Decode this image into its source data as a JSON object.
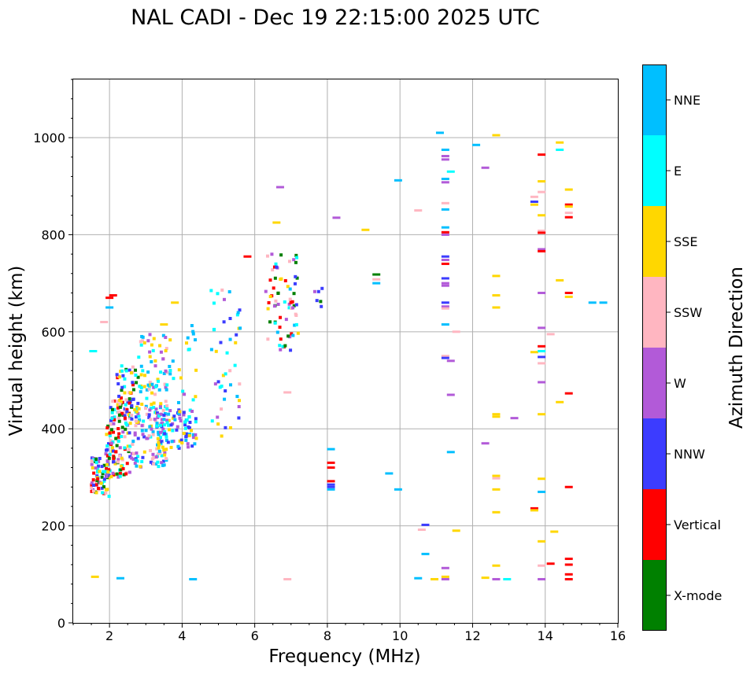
{
  "chart_data": {
    "type": "scatter",
    "title": "NAL CADI - Dec 19 22:15:00 2025 UTC",
    "xlabel": "Frequency (MHz)",
    "ylabel": "Virtual height (km)",
    "xlim": [
      1,
      16
    ],
    "ylim": [
      0,
      1120
    ],
    "xticks": [
      2,
      4,
      6,
      8,
      10,
      12,
      14,
      16
    ],
    "yticks": [
      0,
      200,
      400,
      600,
      800,
      1000
    ],
    "grid": true,
    "colorbar": {
      "title": "Azimuth Direction",
      "categories": [
        {
          "name": "X-mode",
          "color": "#008000"
        },
        {
          "name": "Vertical",
          "color": "#ff0000"
        },
        {
          "name": "NNW",
          "color": "#3c3cff"
        },
        {
          "name": "W",
          "color": "#b25ad8"
        },
        {
          "name": "SSW",
          "color": "#ffb6c1"
        },
        {
          "name": "SSE",
          "color": "#ffd700"
        },
        {
          "name": "E",
          "color": "#00ffff"
        },
        {
          "name": "NNE",
          "color": "#00bfff"
        }
      ]
    },
    "clusters": [
      {
        "f": [
          1.5,
          2.0
        ],
        "h": [
          260,
          340
        ],
        "dir": [
          "W",
          "Vertical",
          "NNW",
          "SSW",
          "E",
          "SSE",
          "X-mode"
        ],
        "n": 70
      },
      {
        "f": [
          1.9,
          2.6
        ],
        "h": [
          300,
          460
        ],
        "dir": [
          "Vertical",
          "NNW",
          "W",
          "SSW",
          "E",
          "SSE",
          "X-mode"
        ],
        "n": 130
      },
      {
        "f": [
          2.2,
          2.8
        ],
        "h": [
          420,
          530
        ],
        "dir": [
          "Vertical",
          "SSE",
          "SSW",
          "NNW",
          "E",
          "X-mode"
        ],
        "n": 60
      },
      {
        "f": [
          2.6,
          3.6
        ],
        "h": [
          320,
          450
        ],
        "dir": [
          "W",
          "NNW",
          "E",
          "SSE",
          "NNE",
          "SSW"
        ],
        "n": 120
      },
      {
        "f": [
          2.8,
          3.6
        ],
        "h": [
          440,
          600
        ],
        "dir": [
          "E",
          "SSE",
          "NNE",
          "SSW",
          "W"
        ],
        "n": 60
      },
      {
        "f": [
          3.3,
          4.4
        ],
        "h": [
          360,
          440
        ],
        "dir": [
          "NNE",
          "E",
          "NNW",
          "SSE",
          "W"
        ],
        "n": 90
      },
      {
        "f": [
          3.4,
          4.4
        ],
        "h": [
          440,
          630
        ],
        "dir": [
          "E",
          "SSE",
          "NNE",
          "W"
        ],
        "n": 30
      },
      {
        "f": [
          4.8,
          5.6
        ],
        "h": [
          380,
          700
        ],
        "dir": [
          "E",
          "NNE",
          "SSW",
          "W",
          "NNW",
          "SSE"
        ],
        "n": 45
      },
      {
        "f": [
          6.3,
          7.2
        ],
        "h": [
          560,
          760
        ],
        "dir": [
          "W",
          "NNW",
          "NNE",
          "Vertical",
          "SSE",
          "E",
          "SSW",
          "X-mode"
        ],
        "n": 70
      },
      {
        "f": [
          7.6,
          7.9
        ],
        "h": [
          650,
          710
        ],
        "dir": [
          "W",
          "NNW",
          "X-mode"
        ],
        "n": 6
      }
    ],
    "points": [
      {
        "x": 1.6,
        "y": 95,
        "dir": "SSE"
      },
      {
        "x": 2.3,
        "y": 92,
        "dir": "NNE"
      },
      {
        "x": 4.3,
        "y": 90,
        "dir": "NNE"
      },
      {
        "x": 1.55,
        "y": 560,
        "dir": "E"
      },
      {
        "x": 1.85,
        "y": 620,
        "dir": "SSW"
      },
      {
        "x": 2.0,
        "y": 650,
        "dir": "NNE"
      },
      {
        "x": 2.0,
        "y": 670,
        "dir": "Vertical"
      },
      {
        "x": 2.1,
        "y": 675,
        "dir": "Vertical"
      },
      {
        "x": 3.5,
        "y": 615,
        "dir": "SSE"
      },
      {
        "x": 3.8,
        "y": 660,
        "dir": "SSE"
      },
      {
        "x": 5.8,
        "y": 755,
        "dir": "Vertical"
      },
      {
        "x": 6.9,
        "y": 90,
        "dir": "SSW"
      },
      {
        "x": 6.9,
        "y": 475,
        "dir": "SSW"
      },
      {
        "x": 6.6,
        "y": 825,
        "dir": "SSE"
      },
      {
        "x": 6.7,
        "y": 898,
        "dir": "W"
      },
      {
        "x": 8.1,
        "y": 358,
        "dir": "NNE"
      },
      {
        "x": 8.1,
        "y": 330,
        "dir": "Vertical"
      },
      {
        "x": 8.1,
        "y": 320,
        "dir": "Vertical"
      },
      {
        "x": 8.1,
        "y": 292,
        "dir": "Vertical"
      },
      {
        "x": 8.1,
        "y": 285,
        "dir": "NNW"
      },
      {
        "x": 8.1,
        "y": 280,
        "dir": "NNW"
      },
      {
        "x": 8.1,
        "y": 275,
        "dir": "NNE"
      },
      {
        "x": 8.25,
        "y": 835,
        "dir": "W"
      },
      {
        "x": 9.05,
        "y": 810,
        "dir": "SSE"
      },
      {
        "x": 9.35,
        "y": 718,
        "dir": "X-mode"
      },
      {
        "x": 9.35,
        "y": 708,
        "dir": "SSW"
      },
      {
        "x": 9.35,
        "y": 700,
        "dir": "NNE"
      },
      {
        "x": 9.7,
        "y": 308,
        "dir": "NNE"
      },
      {
        "x": 9.95,
        "y": 275,
        "dir": "NNE"
      },
      {
        "x": 9.95,
        "y": 912,
        "dir": "NNE"
      },
      {
        "x": 10.5,
        "y": 850,
        "dir": "SSW"
      },
      {
        "x": 10.5,
        "y": 92,
        "dir": "NNE"
      },
      {
        "x": 10.6,
        "y": 192,
        "dir": "SSW"
      },
      {
        "x": 10.7,
        "y": 202,
        "dir": "NNW"
      },
      {
        "x": 10.7,
        "y": 142,
        "dir": "NNE"
      },
      {
        "x": 10.95,
        "y": 90,
        "dir": "SSE"
      },
      {
        "x": 11.1,
        "y": 1010,
        "dir": "NNE"
      },
      {
        "x": 11.25,
        "y": 975,
        "dir": "NNE"
      },
      {
        "x": 11.25,
        "y": 962,
        "dir": "W"
      },
      {
        "x": 11.25,
        "y": 955,
        "dir": "W"
      },
      {
        "x": 11.25,
        "y": 915,
        "dir": "NNE"
      },
      {
        "x": 11.25,
        "y": 908,
        "dir": "W"
      },
      {
        "x": 11.25,
        "y": 865,
        "dir": "SSW"
      },
      {
        "x": 11.25,
        "y": 852,
        "dir": "NNE"
      },
      {
        "x": 11.25,
        "y": 815,
        "dir": "NNE"
      },
      {
        "x": 11.25,
        "y": 805,
        "dir": "Vertical"
      },
      {
        "x": 11.25,
        "y": 800,
        "dir": "W"
      },
      {
        "x": 11.25,
        "y": 755,
        "dir": "NNW"
      },
      {
        "x": 11.25,
        "y": 748,
        "dir": "W"
      },
      {
        "x": 11.25,
        "y": 740,
        "dir": "Vertical"
      },
      {
        "x": 11.25,
        "y": 710,
        "dir": "NNW"
      },
      {
        "x": 11.25,
        "y": 700,
        "dir": "W"
      },
      {
        "x": 11.25,
        "y": 695,
        "dir": "W"
      },
      {
        "x": 11.25,
        "y": 660,
        "dir": "NNW"
      },
      {
        "x": 11.25,
        "y": 652,
        "dir": "W"
      },
      {
        "x": 11.25,
        "y": 648,
        "dir": "SSW"
      },
      {
        "x": 11.25,
        "y": 615,
        "dir": "NNE"
      },
      {
        "x": 11.25,
        "y": 550,
        "dir": "SSW"
      },
      {
        "x": 11.25,
        "y": 546,
        "dir": "NNW"
      },
      {
        "x": 11.4,
        "y": 930,
        "dir": "E"
      },
      {
        "x": 11.4,
        "y": 540,
        "dir": "W"
      },
      {
        "x": 11.4,
        "y": 470,
        "dir": "W"
      },
      {
        "x": 11.4,
        "y": 352,
        "dir": "NNE"
      },
      {
        "x": 11.55,
        "y": 600,
        "dir": "SSW"
      },
      {
        "x": 11.55,
        "y": 190,
        "dir": "SSE"
      },
      {
        "x": 11.25,
        "y": 113,
        "dir": "W"
      },
      {
        "x": 11.25,
        "y": 95,
        "dir": "SSE"
      },
      {
        "x": 11.25,
        "y": 90,
        "dir": "W"
      },
      {
        "x": 12.1,
        "y": 985,
        "dir": "NNE"
      },
      {
        "x": 12.35,
        "y": 938,
        "dir": "W"
      },
      {
        "x": 12.35,
        "y": 370,
        "dir": "W"
      },
      {
        "x": 12.35,
        "y": 93,
        "dir": "SSE"
      },
      {
        "x": 12.65,
        "y": 1005,
        "dir": "SSE"
      },
      {
        "x": 12.65,
        "y": 715,
        "dir": "SSE"
      },
      {
        "x": 12.65,
        "y": 675,
        "dir": "SSE"
      },
      {
        "x": 12.65,
        "y": 650,
        "dir": "SSE"
      },
      {
        "x": 12.65,
        "y": 430,
        "dir": "SSE"
      },
      {
        "x": 12.65,
        "y": 425,
        "dir": "SSE"
      },
      {
        "x": 12.65,
        "y": 303,
        "dir": "SSE"
      },
      {
        "x": 12.65,
        "y": 298,
        "dir": "SSW"
      },
      {
        "x": 12.65,
        "y": 275,
        "dir": "SSE"
      },
      {
        "x": 12.65,
        "y": 228,
        "dir": "SSE"
      },
      {
        "x": 12.65,
        "y": 118,
        "dir": "SSE"
      },
      {
        "x": 12.65,
        "y": 90,
        "dir": "W"
      },
      {
        "x": 12.95,
        "y": 90,
        "dir": "E"
      },
      {
        "x": 13.15,
        "y": 422,
        "dir": "W"
      },
      {
        "x": 13.7,
        "y": 878,
        "dir": "SSW"
      },
      {
        "x": 13.7,
        "y": 868,
        "dir": "NNW"
      },
      {
        "x": 13.7,
        "y": 862,
        "dir": "SSE"
      },
      {
        "x": 13.7,
        "y": 558,
        "dir": "SSE"
      },
      {
        "x": 13.7,
        "y": 236,
        "dir": "Vertical"
      },
      {
        "x": 13.7,
        "y": 232,
        "dir": "SSE"
      },
      {
        "x": 13.9,
        "y": 965,
        "dir": "Vertical"
      },
      {
        "x": 13.9,
        "y": 910,
        "dir": "SSE"
      },
      {
        "x": 13.9,
        "y": 888,
        "dir": "SSW"
      },
      {
        "x": 13.9,
        "y": 840,
        "dir": "SSE"
      },
      {
        "x": 13.9,
        "y": 808,
        "dir": "SSW"
      },
      {
        "x": 13.9,
        "y": 804,
        "dir": "Vertical"
      },
      {
        "x": 13.9,
        "y": 770,
        "dir": "W"
      },
      {
        "x": 13.9,
        "y": 766,
        "dir": "Vertical"
      },
      {
        "x": 13.9,
        "y": 680,
        "dir": "W"
      },
      {
        "x": 13.9,
        "y": 608,
        "dir": "W"
      },
      {
        "x": 13.9,
        "y": 570,
        "dir": "Vertical"
      },
      {
        "x": 13.9,
        "y": 560,
        "dir": "E"
      },
      {
        "x": 13.9,
        "y": 548,
        "dir": "NNW"
      },
      {
        "x": 13.9,
        "y": 535,
        "dir": "SSW"
      },
      {
        "x": 13.9,
        "y": 496,
        "dir": "W"
      },
      {
        "x": 13.9,
        "y": 430,
        "dir": "SSE"
      },
      {
        "x": 13.9,
        "y": 297,
        "dir": "SSE"
      },
      {
        "x": 13.9,
        "y": 270,
        "dir": "NNE"
      },
      {
        "x": 13.9,
        "y": 168,
        "dir": "SSE"
      },
      {
        "x": 13.9,
        "y": 118,
        "dir": "SSW"
      },
      {
        "x": 13.9,
        "y": 90,
        "dir": "W"
      },
      {
        "x": 14.15,
        "y": 595,
        "dir": "SSW"
      },
      {
        "x": 14.15,
        "y": 122,
        "dir": "Vertical"
      },
      {
        "x": 14.25,
        "y": 188,
        "dir": "SSE"
      },
      {
        "x": 14.4,
        "y": 990,
        "dir": "SSE"
      },
      {
        "x": 14.4,
        "y": 975,
        "dir": "E"
      },
      {
        "x": 14.4,
        "y": 706,
        "dir": "SSE"
      },
      {
        "x": 14.4,
        "y": 455,
        "dir": "SSE"
      },
      {
        "x": 14.65,
        "y": 893,
        "dir": "SSE"
      },
      {
        "x": 14.65,
        "y": 862,
        "dir": "Vertical"
      },
      {
        "x": 14.65,
        "y": 858,
        "dir": "SSE"
      },
      {
        "x": 14.65,
        "y": 845,
        "dir": "SSW"
      },
      {
        "x": 14.65,
        "y": 836,
        "dir": "Vertical"
      },
      {
        "x": 14.65,
        "y": 680,
        "dir": "Vertical"
      },
      {
        "x": 14.65,
        "y": 672,
        "dir": "SSE"
      },
      {
        "x": 14.65,
        "y": 473,
        "dir": "Vertical"
      },
      {
        "x": 14.65,
        "y": 280,
        "dir": "Vertical"
      },
      {
        "x": 14.65,
        "y": 132,
        "dir": "Vertical"
      },
      {
        "x": 14.65,
        "y": 120,
        "dir": "Vertical"
      },
      {
        "x": 14.65,
        "y": 100,
        "dir": "Vertical"
      },
      {
        "x": 14.65,
        "y": 90,
        "dir": "Vertical"
      },
      {
        "x": 15.3,
        "y": 660,
        "dir": "NNE"
      },
      {
        "x": 15.6,
        "y": 660,
        "dir": "NNE"
      }
    ]
  }
}
